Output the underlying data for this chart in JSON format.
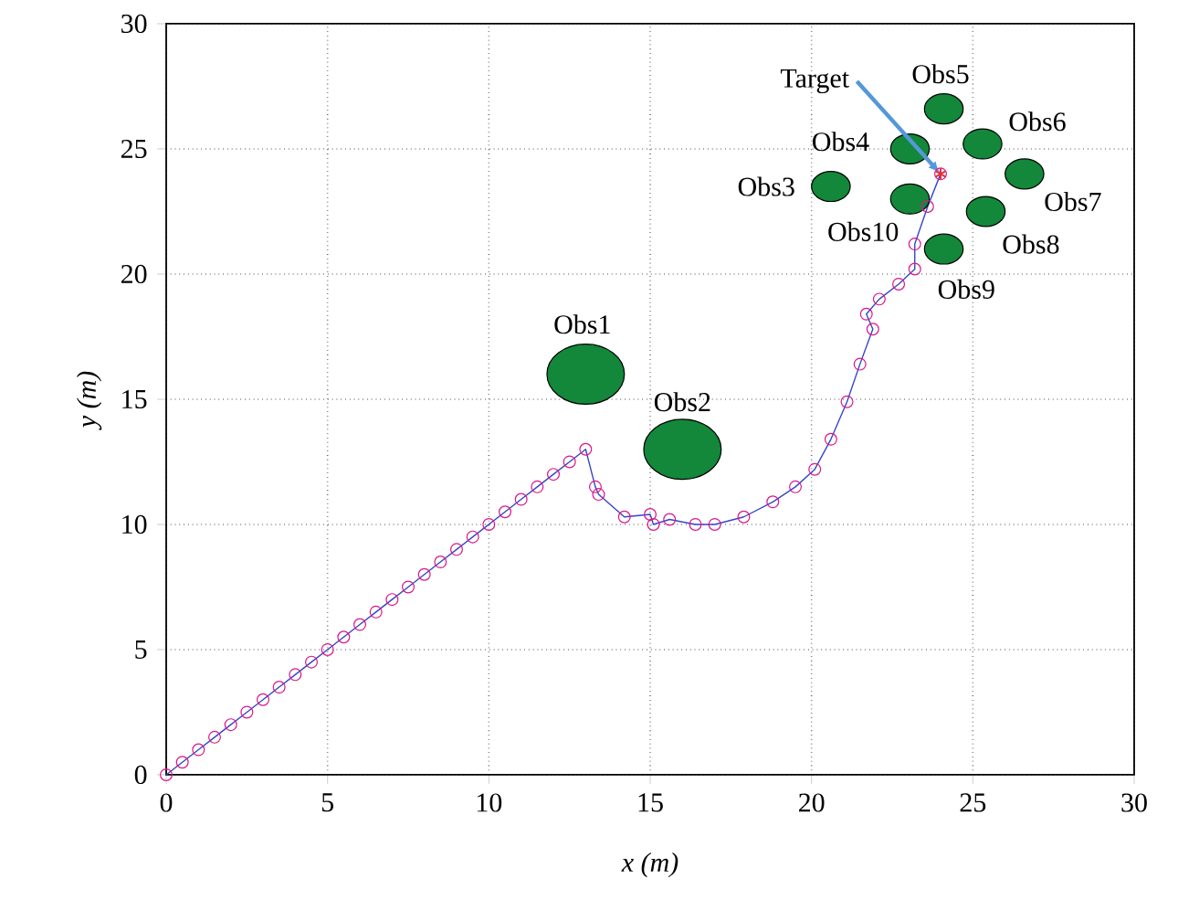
{
  "chart_data": {
    "type": "line",
    "xlabel": "x (m)",
    "ylabel": "y (m)",
    "xlim": [
      0,
      30
    ],
    "ylim": [
      0,
      30
    ],
    "xticks": [
      0,
      5,
      10,
      15,
      20,
      25,
      30
    ],
    "yticks": [
      0,
      5,
      10,
      15,
      20,
      25,
      30
    ],
    "grid": true,
    "series": [
      {
        "color": "#3346c8",
        "marker": "circle",
        "x": [
          0,
          0.5,
          1,
          1.5,
          2,
          2.5,
          3,
          3.5,
          4,
          4.5,
          5,
          5.5,
          6,
          6.5,
          7,
          7.5,
          8,
          8.5,
          9,
          9.5,
          10,
          10.5,
          11,
          11.5,
          12,
          12.5,
          13,
          13.3,
          13.4,
          14.2,
          15.0,
          15.1,
          15.6,
          16.4,
          17.0,
          17.9,
          18.8,
          19.5,
          20.1,
          20.6,
          21.1,
          21.5,
          21.9,
          21.7,
          22.1,
          22.7,
          23.2,
          23.2,
          23.6,
          24
        ],
        "values": [
          0,
          0.5,
          1,
          1.5,
          2,
          2.5,
          3,
          3.5,
          4,
          4.5,
          5,
          5.5,
          6,
          6.5,
          7,
          7.5,
          8,
          8.5,
          9,
          9.5,
          10,
          10.5,
          11,
          11.5,
          12,
          12.5,
          13,
          11.5,
          11.2,
          10.3,
          10.4,
          10.0,
          10.2,
          10.0,
          10.0,
          10.3,
          10.9,
          11.5,
          12.2,
          13.4,
          14.9,
          16.4,
          17.8,
          18.4,
          19.0,
          19.6,
          20.2,
          21.2,
          22.7,
          24
        ]
      },
      {
        "type": "scatter",
        "color": "#e0303a",
        "marker": "cross",
        "x": [
          24
        ],
        "values": [
          24
        ]
      },
      {
        "type": "bubble",
        "color": "#13873a",
        "x": [
          13.0,
          16.0,
          20.6,
          23.05,
          24.1,
          25.3,
          26.6,
          25.4,
          24.1,
          23.05
        ],
        "values": [
          16.0,
          13.0,
          23.5,
          25.0,
          26.6,
          25.2,
          24.0,
          22.5,
          21.0,
          23.0
        ],
        "sizes": [
          1,
          1,
          0.25,
          0.25,
          0.25,
          0.25,
          0.25,
          0.25,
          0.25,
          0.25
        ]
      }
    ],
    "annotations": [
      {
        "text": "Obs1",
        "x": 13.0,
        "y": 16.0
      },
      {
        "text": "Obs2",
        "x": 16.0,
        "y": 13.0
      },
      {
        "text": "Obs3",
        "x": 20.6,
        "y": 23.5
      },
      {
        "text": "Obs4",
        "x": 23.05,
        "y": 25.0
      },
      {
        "text": "Obs5",
        "x": 24.1,
        "y": 26.6
      },
      {
        "text": "Obs6",
        "x": 25.3,
        "y": 25.2
      },
      {
        "text": "Obs7",
        "x": 26.6,
        "y": 24.0
      },
      {
        "text": "Obs8",
        "x": 25.4,
        "y": 22.5
      },
      {
        "text": "Obs9",
        "x": 24.1,
        "y": 21.0
      },
      {
        "text": "Obs10",
        "x": 23.05,
        "y": 23.0
      },
      {
        "text": "Target",
        "x": 24,
        "y": 24
      }
    ]
  }
}
